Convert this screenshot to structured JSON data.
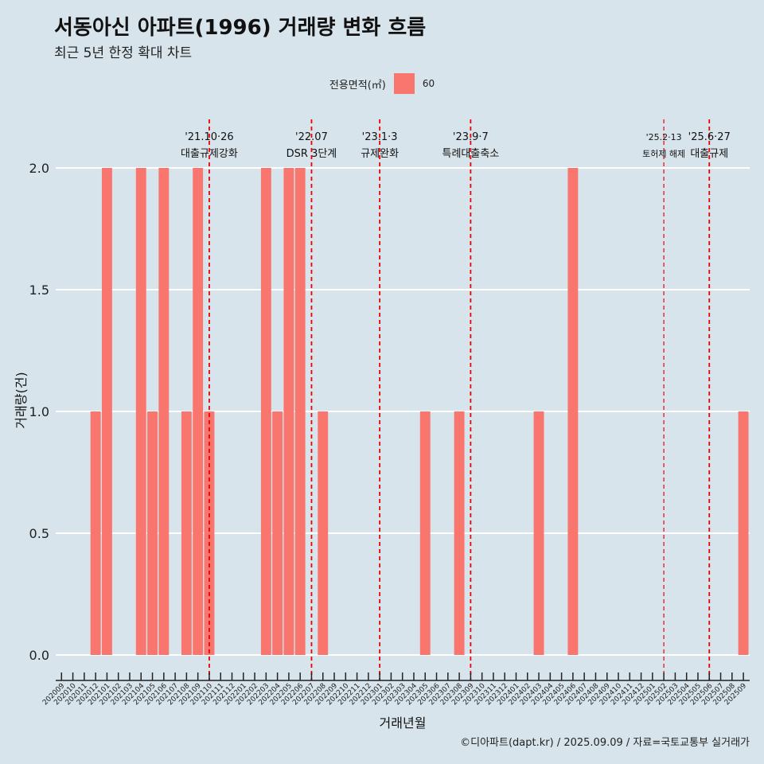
{
  "title": "서동아신 아파트(1996) 거래량 변화 흐름",
  "subtitle": "최근 5년 한정 확대 차트",
  "caption": "©디아파트(dapt.kr) / 2025.09.09 / 자료=국토교통부 실거래가",
  "legend": {
    "title": "전용면적(㎡)",
    "label": "60",
    "color": "#f8766d"
  },
  "colors": {
    "background": "#d7e4eb",
    "grid": "#ffffff",
    "bar": "#f8766d",
    "event_line": "#ee0000",
    "axis": "#222222"
  },
  "chart_data": {
    "type": "bar",
    "title": "서동아신 아파트(1996) 거래량 변화 흐름",
    "xlabel": "거래년월",
    "ylabel": "거래량(건)",
    "ylim": [
      0,
      2
    ],
    "yticks": [
      "0.0",
      "0.5",
      "1.0",
      "1.5",
      "2.0"
    ],
    "categories": [
      "202009",
      "202010",
      "202011",
      "202012",
      "202101",
      "202102",
      "202103",
      "202104",
      "202105",
      "202106",
      "202107",
      "202108",
      "202109",
      "202110",
      "202111",
      "202112",
      "202201",
      "202202",
      "202203",
      "202204",
      "202205",
      "202206",
      "202207",
      "202208",
      "202209",
      "202210",
      "202211",
      "202212",
      "202301",
      "202302",
      "202303",
      "202304",
      "202305",
      "202306",
      "202307",
      "202308",
      "202309",
      "202310",
      "202311",
      "202312",
      "202401",
      "202402",
      "202403",
      "202404",
      "202405",
      "202406",
      "202407",
      "202408",
      "202409",
      "202410",
      "202411",
      "202412",
      "202501",
      "202502",
      "202503",
      "202504",
      "202505",
      "202506",
      "202507",
      "202508",
      "202509"
    ],
    "series": [
      {
        "name": "60",
        "values": [
          0,
          0,
          0,
          1,
          2,
          0,
          0,
          2,
          1,
          2,
          0,
          1,
          2,
          1,
          0,
          0,
          0,
          0,
          2,
          1,
          2,
          2,
          0,
          1,
          0,
          0,
          0,
          0,
          0,
          0,
          0,
          0,
          1,
          0,
          0,
          1,
          0,
          0,
          0,
          0,
          0,
          0,
          1,
          0,
          0,
          2,
          0,
          0,
          0,
          0,
          0,
          0,
          0,
          0,
          0,
          0,
          0,
          0,
          0,
          0,
          1
        ]
      }
    ],
    "annotations": [
      {
        "x": 13.0,
        "date": "'21.10·26",
        "label": "대출규제강화",
        "small": false
      },
      {
        "x": 22.0,
        "date": "'22.07",
        "label": "DSR 3단계",
        "small": false
      },
      {
        "x": 28.0,
        "date": "'23.1·3",
        "label": "규제완화",
        "small": false
      },
      {
        "x": 36.0,
        "date": "'23.9·7",
        "label": "특례대출축소",
        "small": false
      },
      {
        "x": 53.0,
        "date": "'25.2·13",
        "label": "토허제 해제",
        "small": true
      },
      {
        "x": 57.0,
        "date": "'25.6·27",
        "label": "대출규제",
        "small": false
      }
    ]
  }
}
